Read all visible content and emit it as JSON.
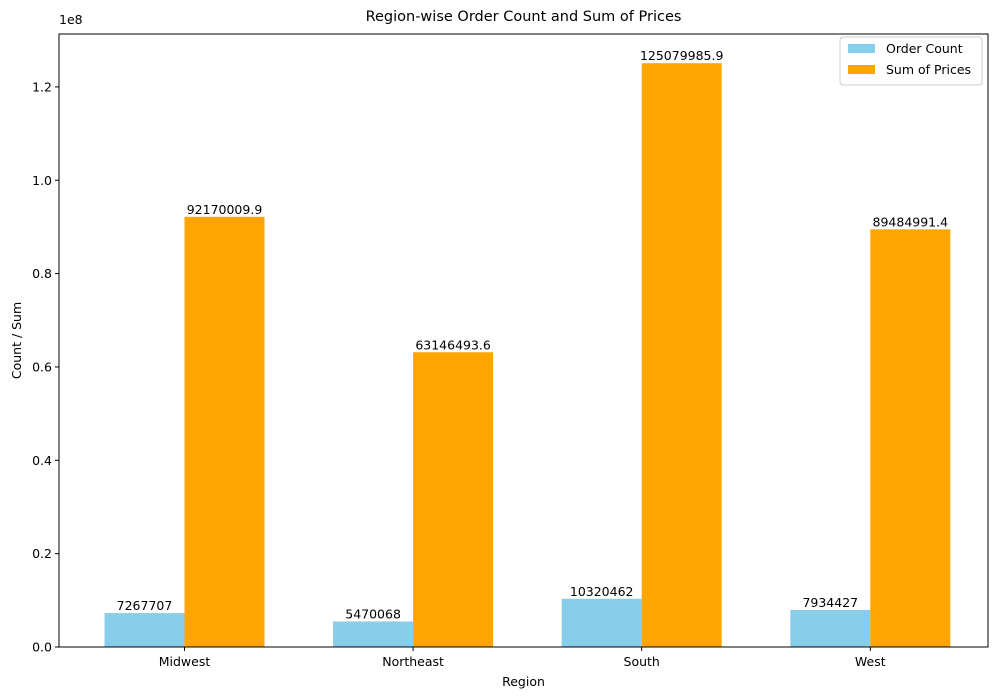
{
  "chart_data": {
    "type": "bar",
    "title": "Region-wise Order Count and Sum of Prices",
    "xlabel": "Region",
    "ylabel": "Count / Sum",
    "scale_multiplier_label": "1e8",
    "scale_multiplier": 100000000,
    "categories": [
      "Midwest",
      "Northeast",
      "South",
      "West"
    ],
    "series": [
      {
        "name": "Order Count",
        "color": "#87ceeb",
        "values": [
          7267707,
          5470068,
          10320462,
          7934427
        ],
        "labels": [
          "7267707",
          "5470068",
          "10320462",
          "7934427"
        ]
      },
      {
        "name": "Sum of Prices",
        "color": "#ffa500",
        "values": [
          92170009.9,
          63146493.6,
          125079985.9,
          89484991.4
        ],
        "labels": [
          "92170009.9",
          "63146493.6",
          "125079985.9",
          "89484991.4"
        ]
      }
    ],
    "yticks": [
      0,
      20000000,
      40000000,
      60000000,
      80000000,
      100000000,
      120000000
    ],
    "ytick_labels": [
      "0.0",
      "0.2",
      "0.4",
      "0.6",
      "0.8",
      "1.0",
      "1.2"
    ],
    "ylim": [
      0,
      131333985
    ],
    "grid": false,
    "legend_position": "top-right"
  }
}
